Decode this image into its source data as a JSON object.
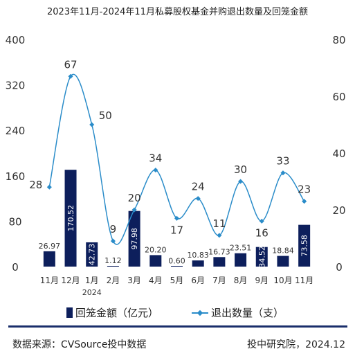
{
  "title": "2023年11月-2024年11月私募股权基金并购退出数量及回笼金额",
  "source": "数据来源：CVSource投中数据",
  "credit": "投中研究院，2024.12",
  "colors": {
    "bar": "#0d1f5c",
    "line": "#2a8cc9",
    "divider": "#1a2e6b"
  },
  "chart_data": {
    "type": "bar+line",
    "categories": [
      "11月",
      "12月",
      "1月",
      "2月",
      "3月",
      "4月",
      "5月",
      "6月",
      "7月",
      "8月",
      "9月",
      "10月",
      "11月"
    ],
    "x_sublabel": {
      "index": 2,
      "text": "2024"
    },
    "series": [
      {
        "name": "回笼金额（亿元）",
        "type": "bar",
        "axis": "left",
        "values": [
          26.97,
          170.52,
          42.73,
          1.12,
          97.98,
          20.2,
          0.6,
          10.83,
          16.73,
          23.51,
          34.52,
          18.84,
          73.58
        ],
        "labels": [
          "26.97",
          "170.52",
          "42.73",
          "1.12",
          "97.98",
          "20.20",
          "0.60",
          "10.83",
          "16.73",
          "23.51",
          "34.52",
          "18.84",
          "73.58"
        ]
      },
      {
        "name": "退出数量（支）",
        "type": "line",
        "smooth": true,
        "axis": "right",
        "values": [
          28,
          67,
          50,
          9,
          20,
          34,
          17,
          24,
          11,
          30,
          16,
          33,
          23
        ],
        "labels": [
          "28",
          "67",
          "50",
          "9",
          "20",
          "34",
          "17",
          "24",
          "11",
          "30",
          "16",
          "33",
          "23"
        ]
      }
    ],
    "left_axis": {
      "ylim": [
        0,
        400
      ],
      "ticks": [
        "0",
        "80",
        "160",
        "240",
        "320",
        "400"
      ]
    },
    "right_axis": {
      "ylim": [
        0,
        80
      ],
      "ticks": [
        "0",
        "20",
        "40",
        "60",
        "80"
      ]
    },
    "grid": false,
    "legend": "bottom"
  }
}
